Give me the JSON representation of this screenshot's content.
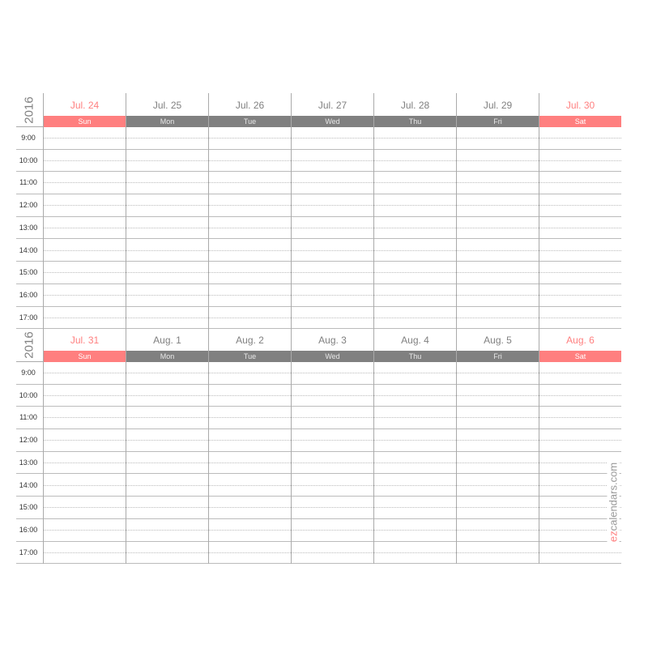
{
  "colors": {
    "weekend": "#ff7f7f",
    "weekday": "#808080"
  },
  "hours": [
    "9:00",
    "10:00",
    "11:00",
    "12:00",
    "13:00",
    "14:00",
    "15:00",
    "16:00",
    "17:00"
  ],
  "weeks": [
    {
      "year": "2016",
      "days": [
        {
          "date": "Jul. 24",
          "name": "Sun",
          "weekend": true
        },
        {
          "date": "Jul. 25",
          "name": "Mon"
        },
        {
          "date": "Jul. 26",
          "name": "Tue"
        },
        {
          "date": "Jul. 27",
          "name": "Wed"
        },
        {
          "date": "Jul. 28",
          "name": "Thu"
        },
        {
          "date": "Jul. 29",
          "name": "Fri"
        },
        {
          "date": "Jul. 30",
          "name": "Sat",
          "weekend": true
        }
      ]
    },
    {
      "year": "2016",
      "days": [
        {
          "date": "Jul. 31",
          "name": "Sun",
          "weekend": true
        },
        {
          "date": "Aug. 1",
          "name": "Mon"
        },
        {
          "date": "Aug. 2",
          "name": "Tue"
        },
        {
          "date": "Aug. 3",
          "name": "Wed"
        },
        {
          "date": "Aug. 4",
          "name": "Thu"
        },
        {
          "date": "Aug. 5",
          "name": "Fri"
        },
        {
          "date": "Aug. 6",
          "name": "Sat",
          "weekend": true
        }
      ]
    }
  ],
  "logo": {
    "prefix": "ez",
    "rest": "calendars.com"
  }
}
